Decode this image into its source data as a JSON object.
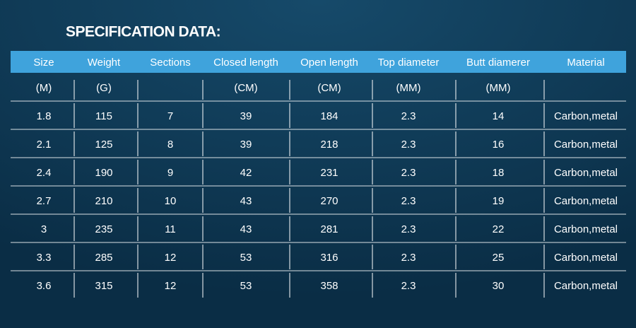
{
  "title": "SPECIFICATION DATA:",
  "table": {
    "header": [
      "Size",
      "Weight",
      "Sections",
      "Closed length",
      "Open length",
      "Top diameter",
      "Butt diamerer",
      "Material"
    ],
    "units": [
      "(M)",
      "(G)",
      null,
      "(CM)",
      "(CM)",
      "(MM)",
      "(MM)",
      null
    ],
    "rows": [
      [
        1.8,
        115,
        7,
        39,
        184,
        2.3,
        14,
        "Carbon,metal"
      ],
      [
        2.1,
        125,
        8,
        39,
        218,
        2.3,
        16,
        "Carbon,metal"
      ],
      [
        2.4,
        190,
        9,
        42,
        231,
        2.3,
        18,
        "Carbon,metal"
      ],
      [
        2.7,
        210,
        10,
        43,
        270,
        2.3,
        19,
        "Carbon,metal"
      ],
      [
        3,
        235,
        11,
        43,
        281,
        2.3,
        22,
        "Carbon,metal"
      ],
      [
        3.3,
        285,
        12,
        53,
        316,
        2.3,
        25,
        "Carbon,metal"
      ],
      [
        3.6,
        315,
        12,
        53,
        358,
        2.3,
        30,
        "Carbon,metal"
      ]
    ]
  }
}
